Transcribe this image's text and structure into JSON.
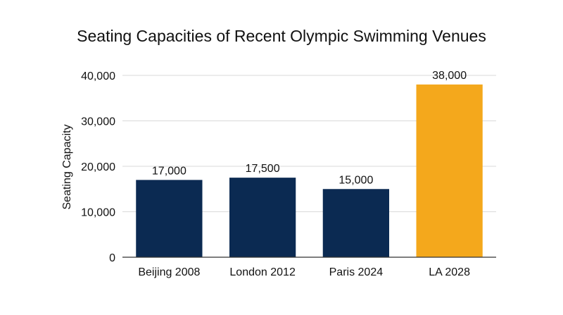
{
  "chart_data": {
    "type": "bar",
    "title": "Seating Capacities of Recent Olympic Swimming Venues",
    "xlabel": "",
    "ylabel": "Seating Capacity",
    "categories": [
      "Beijing 2008",
      "London 2012",
      "Paris 2024",
      "LA 2028"
    ],
    "values": [
      17000,
      17500,
      15000,
      38000
    ],
    "value_labels": [
      "17,000",
      "17,500",
      "15,000",
      "38,000"
    ],
    "bar_colors": [
      "#0b2a52",
      "#0b2a52",
      "#0b2a52",
      "#f4a81c"
    ],
    "ylim": [
      0,
      40000
    ],
    "yticks": [
      0,
      10000,
      20000,
      30000,
      40000
    ],
    "ytick_labels": [
      "0",
      "10,000",
      "20,000",
      "30,000",
      "40,000"
    ],
    "grid": true,
    "legend": "none"
  },
  "colors": {
    "primary_bar": "#0b2a52",
    "highlight_bar": "#f4a81c",
    "grid": "#d9d9d9",
    "axis": "#333333"
  }
}
